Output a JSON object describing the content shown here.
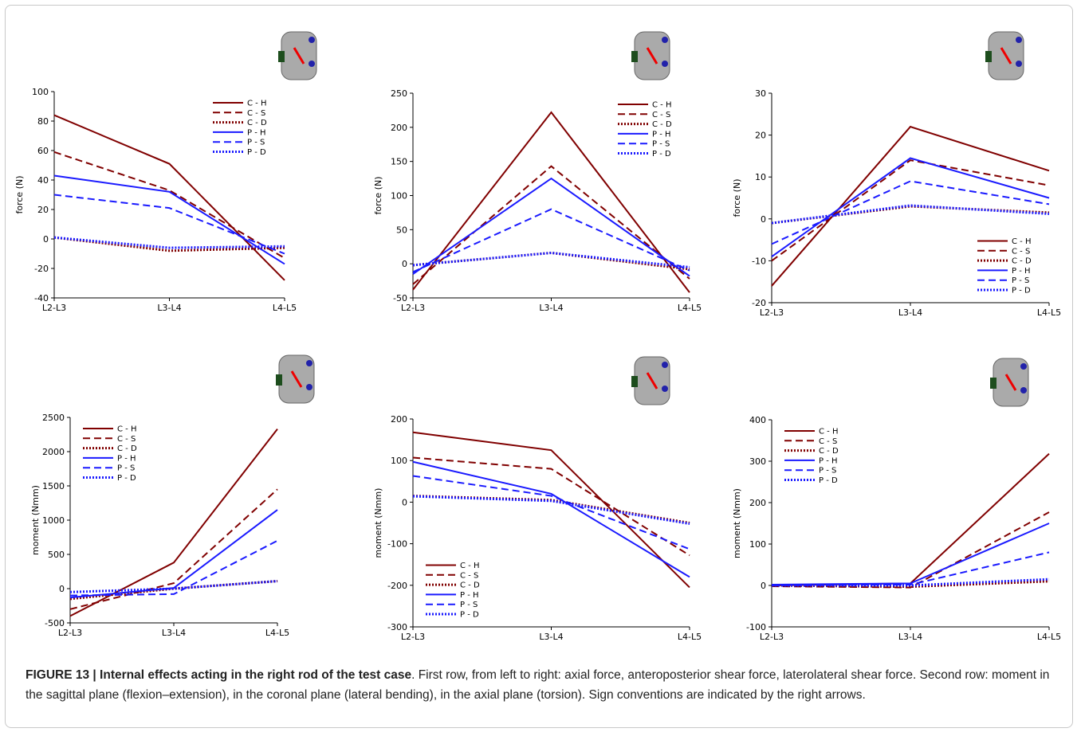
{
  "chart_data": [
    {
      "type": "line",
      "ylabel": "force (N)",
      "categories": [
        "L2-L3",
        "L3-L4",
        "L4-L5"
      ],
      "ylim": [
        -40,
        100
      ],
      "yticks": [
        -40,
        -20,
        0,
        20,
        40,
        60,
        80,
        100
      ],
      "legend": "upper right",
      "series": [
        {
          "name": "C - H",
          "color": "#800000",
          "style": "solid",
          "values": [
            84,
            51,
            -28
          ]
        },
        {
          "name": "C - S",
          "color": "#800000",
          "style": "dashed",
          "values": [
            59,
            33,
            -13
          ]
        },
        {
          "name": "C - D",
          "color": "#800000",
          "style": "dotted",
          "values": [
            1,
            -8,
            -6
          ]
        },
        {
          "name": "P - H",
          "color": "#1a1aff",
          "style": "solid",
          "values": [
            43,
            32,
            -17
          ]
        },
        {
          "name": "P - S",
          "color": "#1a1aff",
          "style": "dashed",
          "values": [
            30,
            21,
            -10
          ]
        },
        {
          "name": "P - D",
          "color": "#1a1aff",
          "style": "dotted",
          "values": [
            1,
            -6,
            -5
          ]
        }
      ]
    },
    {
      "type": "line",
      "ylabel": "force (N)",
      "categories": [
        "L2-L3",
        "L3-L4",
        "L4-L5"
      ],
      "ylim": [
        -50,
        250
      ],
      "yticks": [
        -50,
        0,
        50,
        100,
        150,
        200,
        250
      ],
      "legend": "upper right",
      "series": [
        {
          "name": "C - H",
          "color": "#800000",
          "style": "solid",
          "values": [
            -38,
            222,
            -42
          ]
        },
        {
          "name": "C - S",
          "color": "#800000",
          "style": "dashed",
          "values": [
            -30,
            143,
            -22
          ]
        },
        {
          "name": "C - D",
          "color": "#800000",
          "style": "dotted",
          "values": [
            -2,
            16,
            -8
          ]
        },
        {
          "name": "P - H",
          "color": "#1a1aff",
          "style": "solid",
          "values": [
            -15,
            125,
            -18
          ]
        },
        {
          "name": "P - S",
          "color": "#1a1aff",
          "style": "dashed",
          "values": [
            -12,
            80,
            -10
          ]
        },
        {
          "name": "P - D",
          "color": "#1a1aff",
          "style": "dotted",
          "values": [
            -2,
            16,
            -5
          ]
        }
      ]
    },
    {
      "type": "line",
      "ylabel": "force (N)",
      "categories": [
        "L2-L3",
        "L3-L4",
        "L4-L5"
      ],
      "ylim": [
        -20,
        30
      ],
      "yticks": [
        -20,
        -10,
        0,
        10,
        20,
        30
      ],
      "legend": "lower right",
      "series": [
        {
          "name": "C - H",
          "color": "#800000",
          "style": "solid",
          "values": [
            -16,
            22,
            11.5
          ]
        },
        {
          "name": "C - S",
          "color": "#800000",
          "style": "dashed",
          "values": [
            -10,
            14,
            8
          ]
        },
        {
          "name": "C - D",
          "color": "#800000",
          "style": "dotted",
          "values": [
            -1,
            3,
            1.5
          ]
        },
        {
          "name": "P - H",
          "color": "#1a1aff",
          "style": "solid",
          "values": [
            -9,
            14.5,
            5
          ]
        },
        {
          "name": "P - S",
          "color": "#1a1aff",
          "style": "dashed",
          "values": [
            -6,
            9,
            3.5
          ]
        },
        {
          "name": "P - D",
          "color": "#1a1aff",
          "style": "dotted",
          "values": [
            -1,
            3.2,
            1.2
          ]
        }
      ]
    },
    {
      "type": "line",
      "ylabel": "moment (Nmm)",
      "categories": [
        "L2-L3",
        "L3-L4",
        "L4-L5"
      ],
      "ylim": [
        -500,
        2500
      ],
      "yticks": [
        -500,
        0,
        500,
        1000,
        1500,
        2000,
        2500
      ],
      "legend": "upper left",
      "series": [
        {
          "name": "C - H",
          "color": "#800000",
          "style": "solid",
          "values": [
            -400,
            380,
            2330
          ]
        },
        {
          "name": "C - S",
          "color": "#800000",
          "style": "dashed",
          "values": [
            -300,
            80,
            1450
          ]
        },
        {
          "name": "C - D",
          "color": "#800000",
          "style": "dotted",
          "values": [
            -150,
            0,
            110
          ]
        },
        {
          "name": "P - H",
          "color": "#1a1aff",
          "style": "solid",
          "values": [
            -130,
            10,
            1150
          ]
        },
        {
          "name": "P - S",
          "color": "#1a1aff",
          "style": "dashed",
          "values": [
            -100,
            -80,
            700
          ]
        },
        {
          "name": "P - D",
          "color": "#1a1aff",
          "style": "dotted",
          "values": [
            -50,
            0,
            110
          ]
        }
      ]
    },
    {
      "type": "line",
      "ylabel": "moment (Nmm)",
      "categories": [
        "L2-L3",
        "L3-L4",
        "L4-L5"
      ],
      "ylim": [
        -300,
        200
      ],
      "yticks": [
        -300,
        -200,
        -100,
        0,
        100,
        200
      ],
      "legend": "lower left",
      "series": [
        {
          "name": "C - H",
          "color": "#800000",
          "style": "solid",
          "values": [
            168,
            125,
            -205
          ]
        },
        {
          "name": "C - S",
          "color": "#800000",
          "style": "dashed",
          "values": [
            107,
            80,
            -128
          ]
        },
        {
          "name": "C - D",
          "color": "#800000",
          "style": "dotted",
          "values": [
            15,
            5,
            -50
          ]
        },
        {
          "name": "P - H",
          "color": "#1a1aff",
          "style": "solid",
          "values": [
            97,
            20,
            -180
          ]
        },
        {
          "name": "P - S",
          "color": "#1a1aff",
          "style": "dashed",
          "values": [
            63,
            15,
            -113
          ]
        },
        {
          "name": "P - D",
          "color": "#1a1aff",
          "style": "dotted",
          "values": [
            14,
            3,
            -52
          ]
        }
      ]
    },
    {
      "type": "line",
      "ylabel": "moment (Nmm)",
      "categories": [
        "L2-L3",
        "L3-L4",
        "L4-L5"
      ],
      "ylim": [
        -100,
        400
      ],
      "yticks": [
        -100,
        0,
        100,
        200,
        300,
        400
      ],
      "legend": "upper left",
      "series": [
        {
          "name": "C - H",
          "color": "#800000",
          "style": "solid",
          "values": [
            0,
            5,
            318
          ]
        },
        {
          "name": "C - S",
          "color": "#800000",
          "style": "dashed",
          "values": [
            -2,
            -5,
            177
          ]
        },
        {
          "name": "C - D",
          "color": "#800000",
          "style": "dotted",
          "values": [
            0,
            -3,
            10
          ]
        },
        {
          "name": "P - H",
          "color": "#1a1aff",
          "style": "solid",
          "values": [
            2,
            5,
            150
          ]
        },
        {
          "name": "P - S",
          "color": "#1a1aff",
          "style": "dashed",
          "values": [
            0,
            2,
            80
          ]
        },
        {
          "name": "P - D",
          "color": "#1a1aff",
          "style": "dotted",
          "values": [
            0,
            0,
            15
          ]
        }
      ]
    }
  ],
  "caption": {
    "label": "FIGURE 13 | Internal effects acting in the right rod of the test case",
    "text": ". First row, from left to right: axial force, anteroposterior shear force, laterolateral shear force. Second row: moment in the sagittal plane (flexion–extension), in the coronal plane (lateral bending), in the axial plane (torsion). Sign conventions are indicated by the right arrows."
  }
}
